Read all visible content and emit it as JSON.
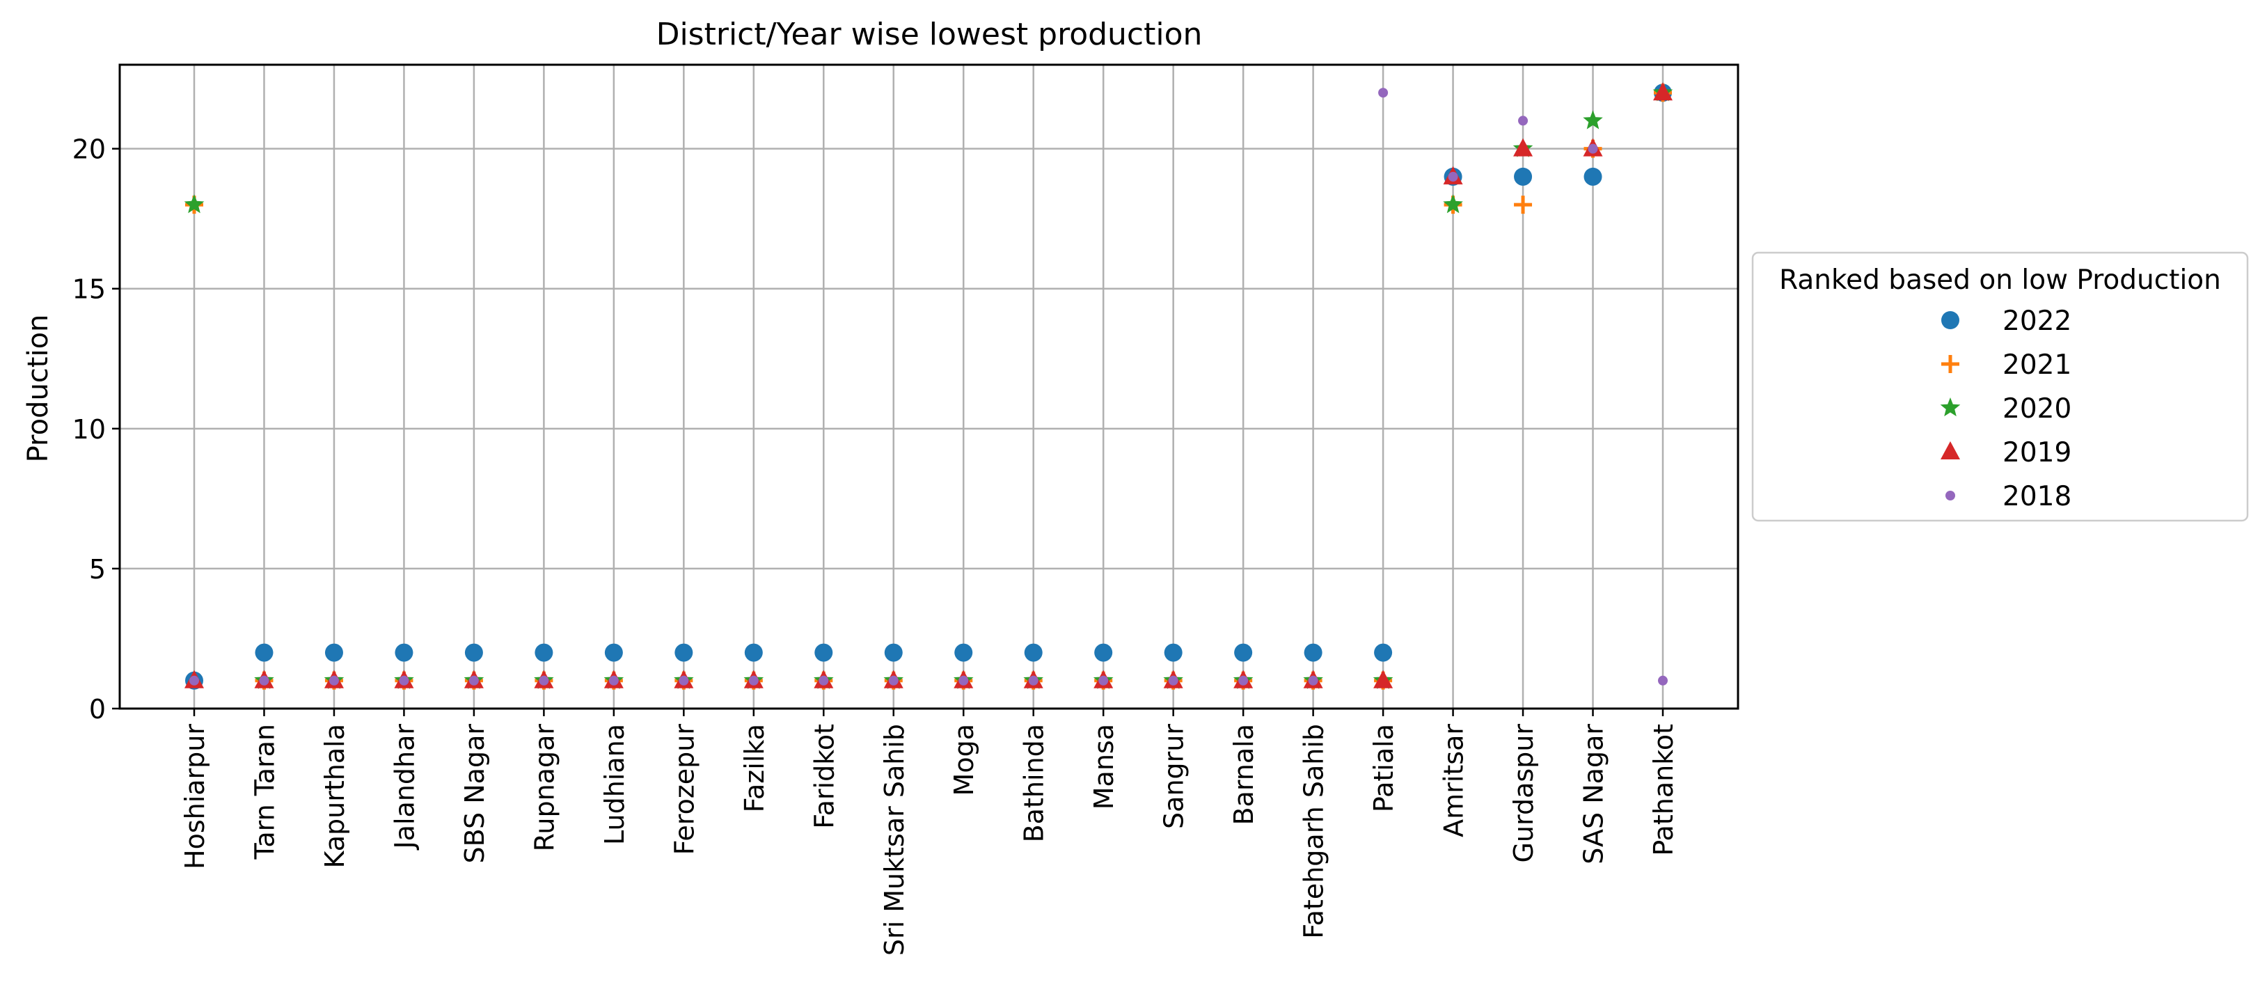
{
  "chart_data": {
    "type": "scatter",
    "title": "District/Year wise lowest production",
    "xlabel": "",
    "ylabel": "Production",
    "ylim": [
      0,
      23
    ],
    "yticks": [
      0,
      5,
      10,
      15,
      20
    ],
    "grid": true,
    "legend": {
      "title": "Ranked based on low Production",
      "placement": "right"
    },
    "categories": [
      "Hoshiarpur",
      "Tarn Taran",
      "Kapurthala",
      "Jalandhar",
      "SBS Nagar",
      "Rupnagar",
      "Ludhiana",
      "Ferozepur",
      "Fazilka",
      "Faridkot",
      "Sri Muktsar Sahib",
      "Moga",
      "Bathinda",
      "Mansa",
      "Sangrur",
      "Barnala",
      "Fatehgarh Sahib",
      "Patiala",
      "Amritsar",
      "Gurdaspur",
      "SAS Nagar",
      "Pathankot"
    ],
    "series": [
      {
        "name": "2022",
        "marker": "circle",
        "color": "#1f77b4",
        "values": [
          1,
          2,
          2,
          2,
          2,
          2,
          2,
          2,
          2,
          2,
          2,
          2,
          2,
          2,
          2,
          2,
          2,
          2,
          19,
          19,
          19,
          22
        ]
      },
      {
        "name": "2021",
        "marker": "plus",
        "color": "#ff7f0e",
        "values": [
          18,
          1,
          1,
          1,
          1,
          1,
          1,
          1,
          1,
          1,
          1,
          1,
          1,
          1,
          1,
          1,
          1,
          1,
          18,
          18,
          20,
          22
        ]
      },
      {
        "name": "2020",
        "marker": "star",
        "color": "#2ca02c",
        "values": [
          18,
          1,
          1,
          1,
          1,
          1,
          1,
          1,
          1,
          1,
          1,
          1,
          1,
          1,
          1,
          1,
          1,
          1,
          18,
          20,
          21,
          22
        ]
      },
      {
        "name": "2019",
        "marker": "triangle",
        "color": "#d62728",
        "values": [
          1,
          1,
          1,
          1,
          1,
          1,
          1,
          1,
          1,
          1,
          1,
          1,
          1,
          1,
          1,
          1,
          1,
          1,
          19,
          20,
          20,
          22
        ]
      },
      {
        "name": "2018",
        "marker": "small-dot",
        "color": "#9467bd",
        "values": [
          1,
          1,
          1,
          1,
          1,
          1,
          1,
          1,
          1,
          1,
          1,
          1,
          1,
          1,
          1,
          1,
          1,
          22,
          19,
          21,
          20,
          1
        ]
      }
    ]
  }
}
